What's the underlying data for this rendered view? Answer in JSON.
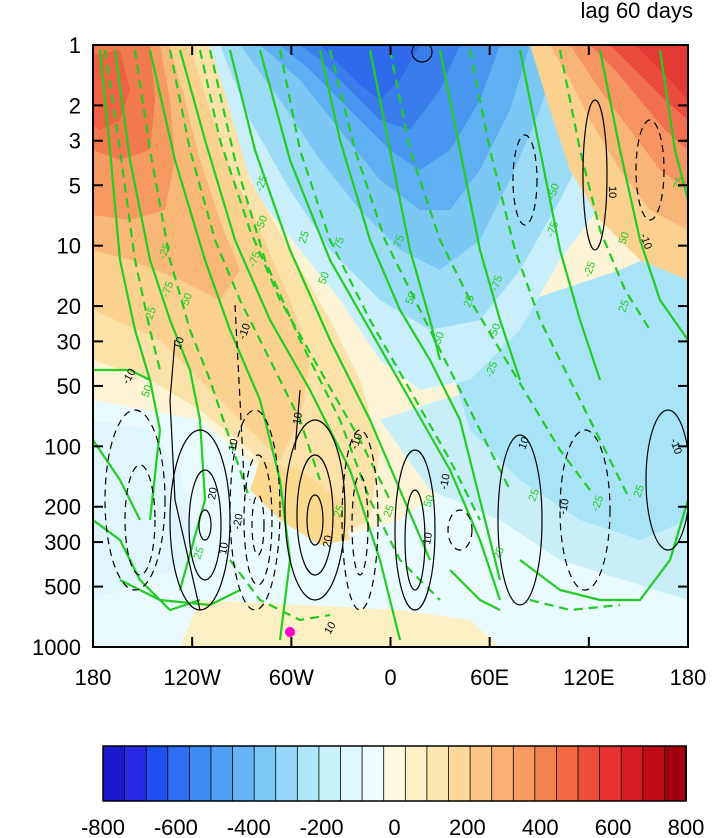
{
  "chart_data": {
    "type": "heatmap",
    "title_right": "lag 60 days",
    "x_ticks": [
      "180",
      "120W",
      "60W",
      "0",
      "60E",
      "120E",
      "180"
    ],
    "y_ticks": [
      "1",
      "2",
      "3",
      "5",
      "10",
      "20",
      "30",
      "50",
      "100",
      "200",
      "300",
      "500",
      "1000"
    ],
    "y_scale": "log",
    "y_reversed": true,
    "colorbar": {
      "ticks": [
        "-800",
        "-600",
        "-400",
        "-200",
        "0",
        "200",
        "400",
        "600",
        "800"
      ],
      "min": -800,
      "max": 800,
      "step": 50,
      "colors": [
        "#1a1acc",
        "#2a2ae6",
        "#1e50f0",
        "#2e6ef2",
        "#3c8cf2",
        "#50a0f4",
        "#64b4f6",
        "#7cc8f8",
        "#96d8fa",
        "#aee6fa",
        "#c8f2fc",
        "#def8fe",
        "#f0fcff",
        "#fefae0",
        "#fdf0c6",
        "#fde6b0",
        "#fcd89a",
        "#fbc686",
        "#f9b072",
        "#f79a60",
        "#f4824e",
        "#f26a42",
        "#ef4e3a",
        "#e83232",
        "#d81c24",
        "#c00c14",
        "#a00010"
      ]
    },
    "green_contours": [
      "-75",
      "-50",
      "-25",
      "25",
      "50",
      "75"
    ],
    "black_contours": [
      "-20",
      "-10",
      "10",
      "20"
    ],
    "marker": {
      "lon": -60,
      "p": 850,
      "color": "#ff00cc"
    }
  }
}
